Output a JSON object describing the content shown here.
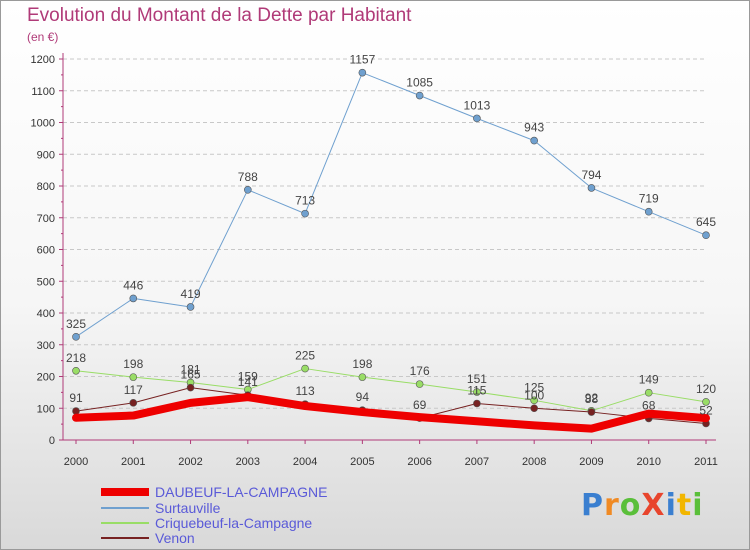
{
  "header": {
    "title": "Evolution du Montant de la Dette par Habitant",
    "unit": "(en €)"
  },
  "brand": {
    "logo_text": "ProXiti"
  },
  "colors": {
    "axis": "#b03a78",
    "grid": "#c8c8c8",
    "tick_text": "#333333",
    "legend_text": "#5a5ad8"
  },
  "chart_data": {
    "type": "line",
    "title": "Evolution du Montant de la Dette par Habitant",
    "ylabel": "(en €)",
    "xlabel": "",
    "x": [
      2000,
      2001,
      2002,
      2003,
      2004,
      2005,
      2006,
      2007,
      2008,
      2009,
      2010,
      2011
    ],
    "ylim": [
      0,
      1200
    ],
    "yticks": [
      0,
      100,
      200,
      300,
      400,
      500,
      600,
      700,
      800,
      900,
      1000,
      1100,
      1200
    ],
    "grid": true,
    "legend_position": "bottom-left",
    "series": [
      {
        "name": "DAUBEUF-LA-CAMPAGNE",
        "color": "#ee0000",
        "width": 8,
        "markers": false,
        "values": [
          70,
          77,
          117,
          135,
          107,
          88,
          72,
          59,
          46,
          36,
          83,
          69
        ],
        "labels": []
      },
      {
        "name": "Surtauville",
        "color": "#6fa0cf",
        "width": 1,
        "markers": true,
        "values": [
          325,
          446,
          419,
          788,
          713,
          1157,
          1085,
          1013,
          943,
          794,
          719,
          645
        ],
        "labels": [
          "325",
          "446",
          "419",
          "788",
          "713",
          "1157",
          "1085",
          "1013",
          "943",
          "794",
          "719",
          "645"
        ]
      },
      {
        "name": "Criquebeuf-la-Campagne",
        "color": "#99dd66",
        "width": 1,
        "markers": true,
        "values": [
          218,
          198,
          181,
          159,
          225,
          198,
          176,
          151,
          125,
          92,
          149,
          120
        ],
        "labels": [
          "218",
          "198",
          "181",
          "159",
          "225",
          "198",
          "176",
          "151",
          "125",
          "92",
          "149",
          "120"
        ]
      },
      {
        "name": "Venon",
        "color": "#772222",
        "width": 1,
        "markers": true,
        "values": [
          91,
          117,
          165,
          141,
          113,
          94,
          69,
          115,
          100,
          88,
          68,
          52
        ],
        "labels": [
          "91",
          "117",
          "165",
          "141",
          "113",
          "94",
          "69",
          "115",
          "100",
          "88",
          "68",
          "52"
        ]
      }
    ]
  }
}
